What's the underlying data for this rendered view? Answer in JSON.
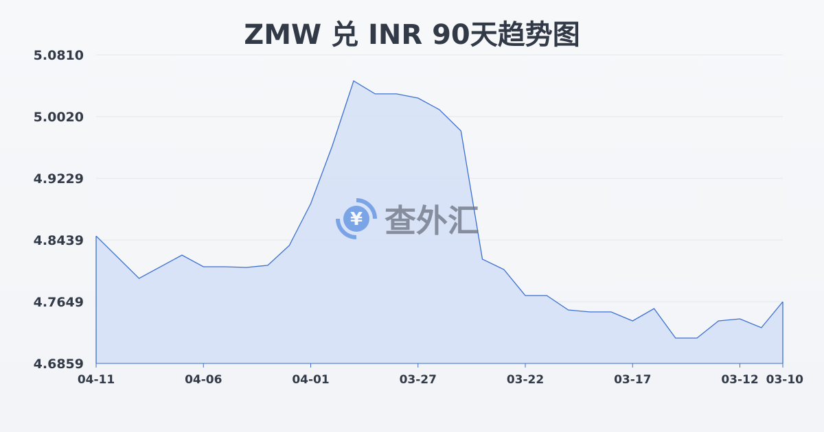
{
  "chart_data": {
    "type": "area",
    "title": "ZMW 兑 INR 90天趋势图",
    "xlabel": "",
    "ylabel": "",
    "x": [
      "04-11",
      "04-09",
      "04-07",
      "04-06",
      "04-05",
      "04-04",
      "04-03",
      "04-02",
      "04-01",
      "03-31",
      "03-30",
      "03-29",
      "03-28",
      "03-27",
      "03-26",
      "03-25",
      "03-24",
      "03-23",
      "03-22",
      "03-21",
      "03-20",
      "03-19",
      "03-18",
      "03-17",
      "03-16",
      "03-15",
      "03-14",
      "03-13",
      "03-12",
      "03-11",
      "03-10"
    ],
    "values": [
      4.849,
      4.7948,
      4.8246,
      4.8097,
      4.8097,
      4.8088,
      4.8115,
      4.8369,
      4.8905,
      4.9642,
      5.0476,
      5.031,
      5.031,
      5.0257,
      5.0108,
      4.9836,
      4.8194,
      4.8062,
      4.7728,
      4.7728,
      4.7544,
      4.7518,
      4.7518,
      4.7403,
      4.7561,
      4.7184,
      4.7184,
      4.7403,
      4.743,
      4.7316,
      4.7649
    ],
    "xticks": [
      "04-11",
      "04-06",
      "04-01",
      "03-27",
      "03-22",
      "03-17",
      "03-12",
      "03-10"
    ],
    "yticks": [
      "5.0810",
      "5.0020",
      "4.9229",
      "4.8439",
      "4.7649",
      "4.6859"
    ],
    "ylim": [
      4.6859,
      5.081
    ],
    "xrange": [
      "04-11",
      "03-10"
    ],
    "grid": true,
    "colors": {
      "line": "#3a6fd0",
      "fill": "#d6e1f6",
      "grid": "#e3e6ea"
    }
  },
  "watermark": {
    "text": "查外汇",
    "icon": "yen-exchange-icon"
  }
}
